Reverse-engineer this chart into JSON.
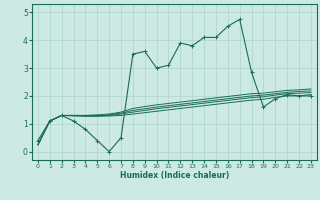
{
  "xlabel": "Humidex (Indice chaleur)",
  "bg_color": "#cce9e3",
  "line_color": "#1a6b5a",
  "grid_color": "#aad4cc",
  "xlim": [
    -0.5,
    23.5
  ],
  "ylim": [
    -0.3,
    5.3
  ],
  "yticks": [
    0,
    1,
    2,
    3,
    4,
    5
  ],
  "xticks": [
    0,
    1,
    2,
    3,
    4,
    5,
    6,
    7,
    8,
    9,
    10,
    11,
    12,
    13,
    14,
    15,
    16,
    17,
    18,
    19,
    20,
    21,
    22,
    23
  ],
  "volatile_x": [
    0,
    1,
    2,
    3,
    4,
    5,
    6,
    7,
    8,
    9,
    10,
    11,
    12,
    13,
    14,
    15,
    16,
    17,
    18,
    19,
    20,
    21,
    22,
    23
  ],
  "volatile_y": [
    0.4,
    1.1,
    1.3,
    1.1,
    0.8,
    0.4,
    0.0,
    0.5,
    3.5,
    3.6,
    3.0,
    3.1,
    3.9,
    3.8,
    4.1,
    4.1,
    4.5,
    4.75,
    2.85,
    1.6,
    1.9,
    2.05,
    2.0,
    2.0
  ],
  "smooth1_x": [
    0,
    1,
    2,
    3,
    4,
    5,
    6,
    7,
    8,
    9,
    10,
    11,
    12,
    13,
    14,
    15,
    16,
    17,
    18,
    19,
    20,
    21,
    22,
    23
  ],
  "smooth1_y": [
    0.25,
    1.1,
    1.3,
    1.28,
    1.27,
    1.27,
    1.28,
    1.3,
    1.35,
    1.4,
    1.45,
    1.5,
    1.55,
    1.6,
    1.65,
    1.7,
    1.75,
    1.8,
    1.85,
    1.88,
    1.95,
    2.0,
    2.0,
    2.05
  ],
  "smooth2_x": [
    0,
    1,
    2,
    3,
    4,
    5,
    6,
    7,
    8,
    9,
    10,
    11,
    12,
    13,
    14,
    15,
    16,
    17,
    18,
    19,
    20,
    21,
    22,
    23
  ],
  "smooth2_y": [
    0.25,
    1.1,
    1.3,
    1.3,
    1.28,
    1.28,
    1.3,
    1.35,
    1.42,
    1.48,
    1.54,
    1.59,
    1.64,
    1.69,
    1.74,
    1.79,
    1.84,
    1.89,
    1.94,
    1.97,
    2.03,
    2.08,
    2.1,
    2.12
  ],
  "smooth3_x": [
    0,
    1,
    2,
    3,
    4,
    5,
    6,
    7,
    8,
    9,
    10,
    11,
    12,
    13,
    14,
    15,
    16,
    17,
    18,
    19,
    20,
    21,
    22,
    23
  ],
  "smooth3_y": [
    0.25,
    1.1,
    1.3,
    1.3,
    1.3,
    1.3,
    1.32,
    1.38,
    1.48,
    1.54,
    1.6,
    1.65,
    1.7,
    1.75,
    1.8,
    1.85,
    1.9,
    1.95,
    2.0,
    2.03,
    2.08,
    2.13,
    2.16,
    2.18
  ],
  "smooth4_x": [
    0,
    1,
    2,
    3,
    4,
    5,
    6,
    7,
    8,
    9,
    10,
    11,
    12,
    13,
    14,
    15,
    16,
    17,
    18,
    19,
    20,
    21,
    22,
    23
  ],
  "smooth4_y": [
    0.25,
    1.1,
    1.3,
    1.3,
    1.3,
    1.32,
    1.35,
    1.42,
    1.55,
    1.62,
    1.68,
    1.73,
    1.78,
    1.83,
    1.88,
    1.93,
    1.98,
    2.03,
    2.08,
    2.1,
    2.15,
    2.2,
    2.22,
    2.25
  ]
}
